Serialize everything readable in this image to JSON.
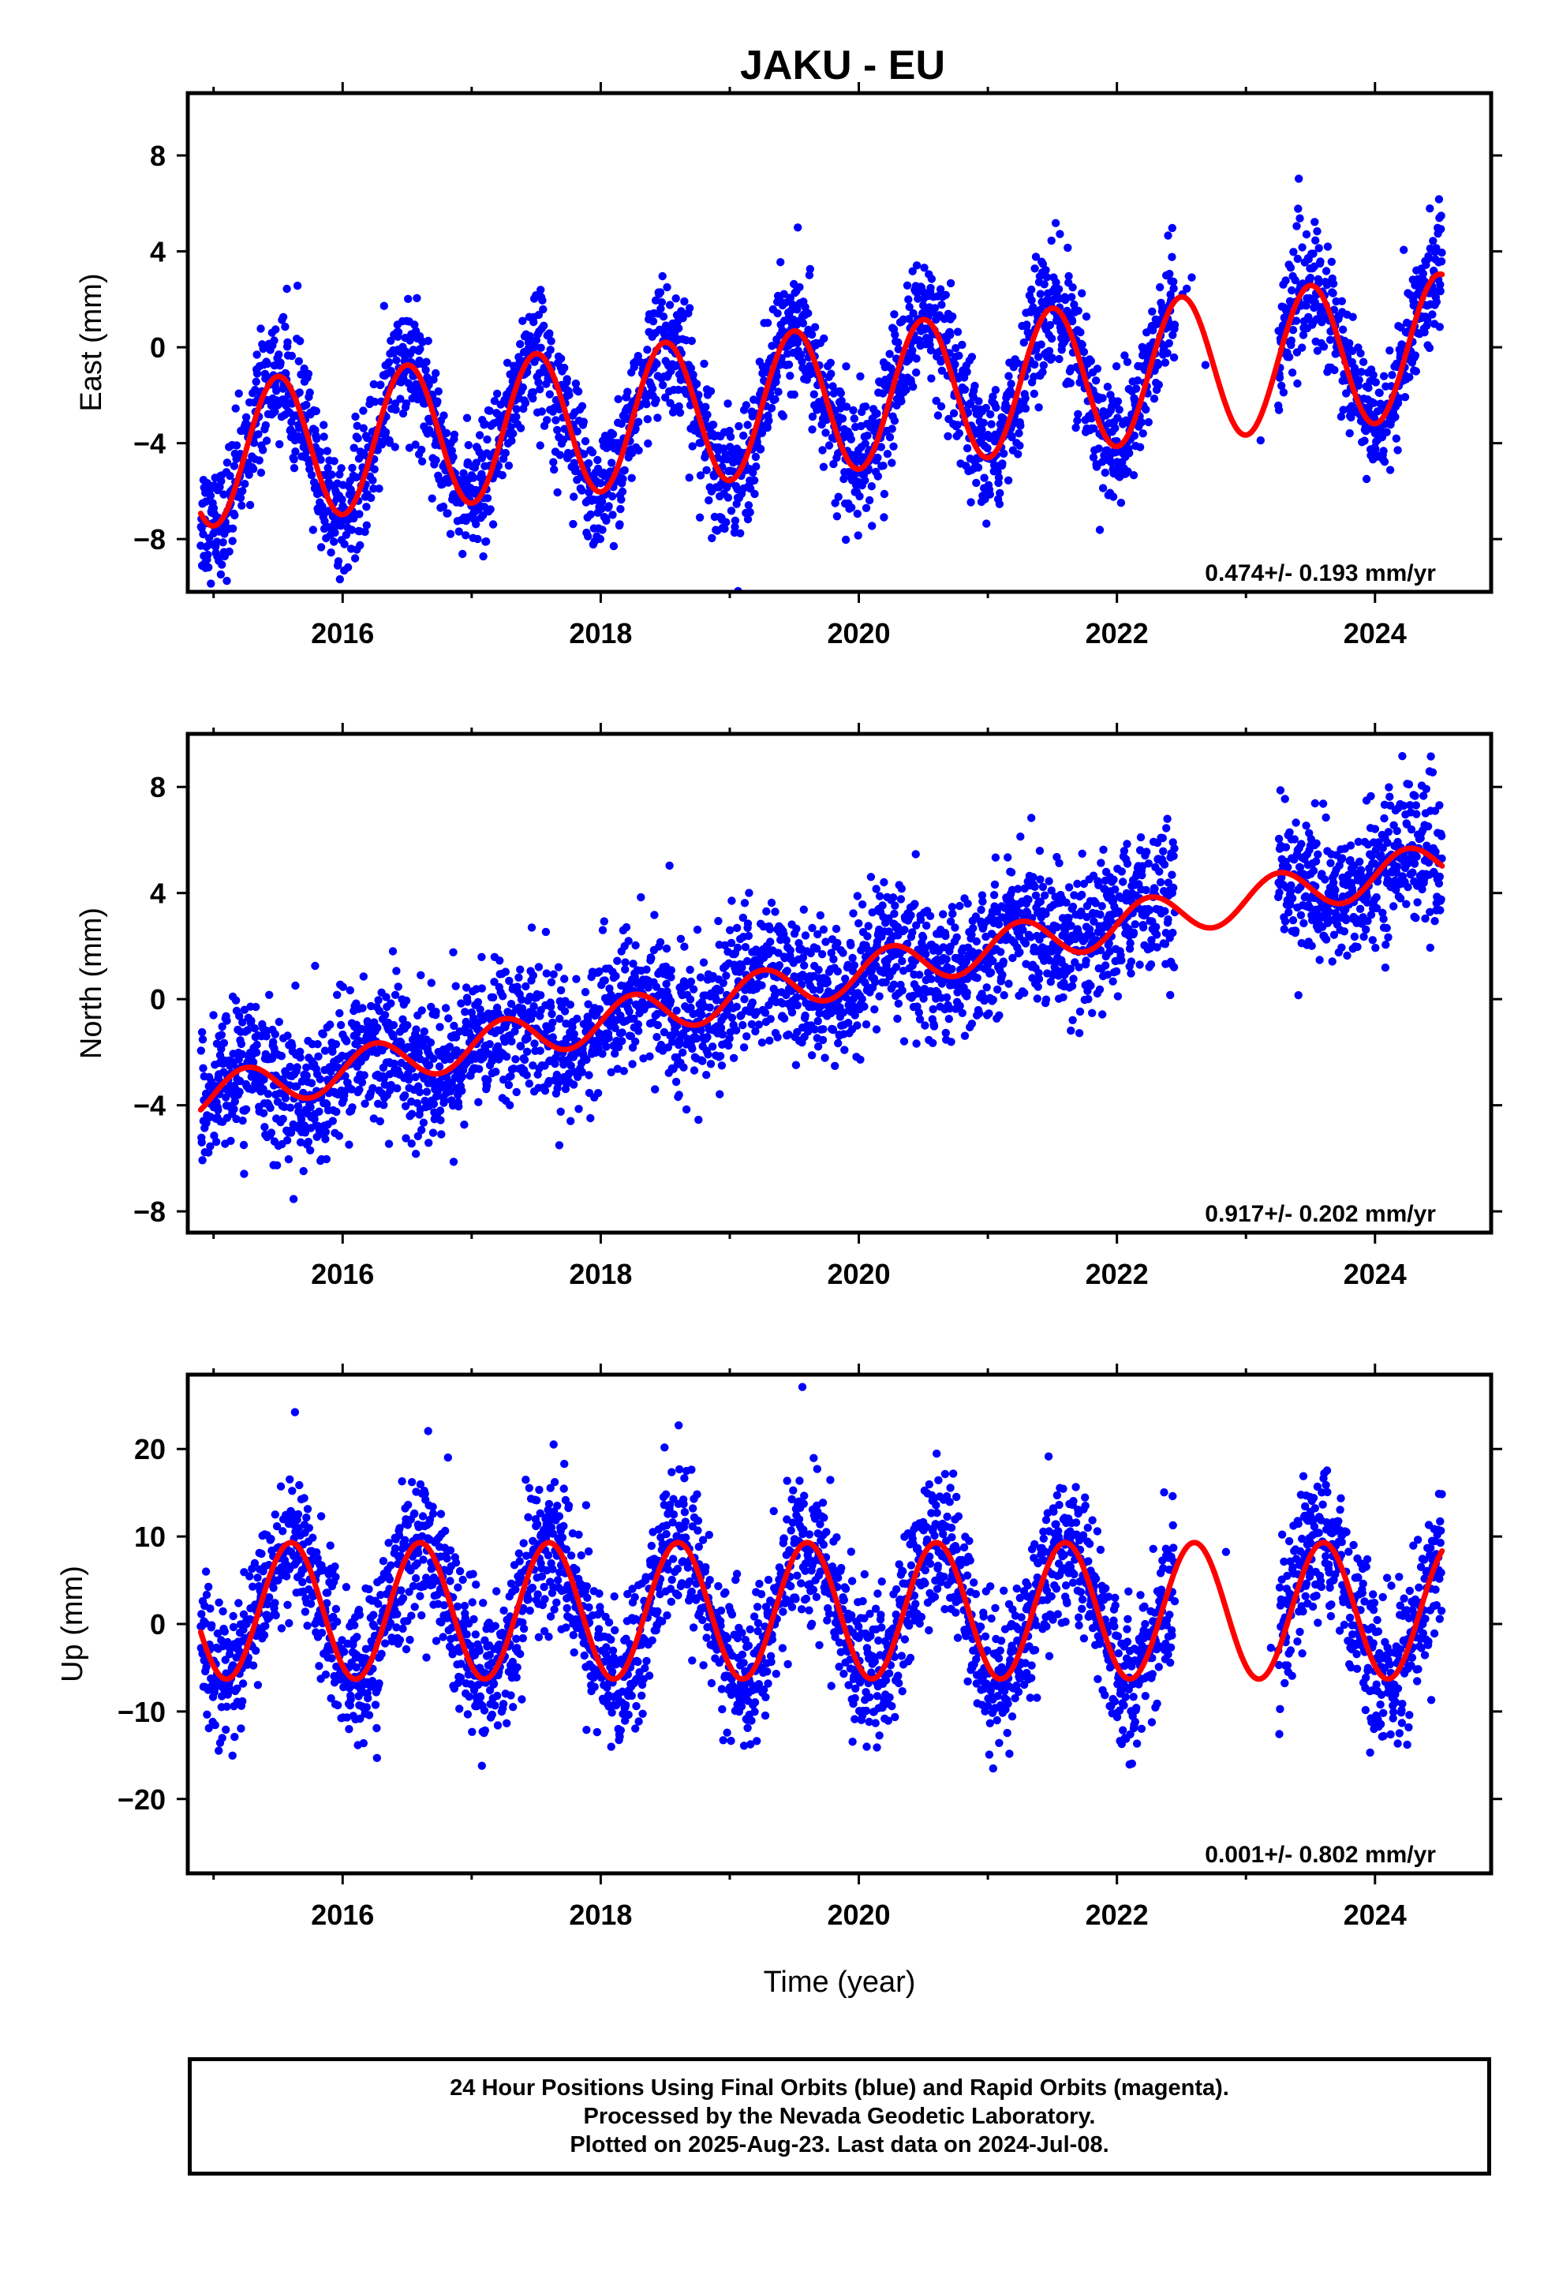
{
  "title": "JAKU - EU",
  "colors": {
    "data": "#0000ff",
    "model": "#ff0000",
    "axis": "#000000"
  },
  "footer": {
    "line1": "24 Hour Positions Using Final Orbits (blue) and Rapid Orbits (magenta).",
    "line2": "Processed by the Nevada Geodetic Laboratory.",
    "line3": "Plotted on 2025-Aug-23. Last data on 2024-Jul-08."
  },
  "chart_data": [
    {
      "type": "scatter",
      "component": "east",
      "title": "JAKU - EU",
      "xlabel": "",
      "ylabel": "East (mm)",
      "xlim": [
        2014.8,
        2024.9
      ],
      "ylim": [
        -10.2,
        10.6
      ],
      "xticks": [
        2016,
        2018,
        2020,
        2022,
        2024
      ],
      "yticks": [
        -8,
        -4,
        0,
        4,
        8
      ],
      "rate_label": "0.474+/- 0.193 mm/yr",
      "data_span": [
        2014.9,
        2024.52
      ],
      "gap": [
        2022.45,
        2023.25
      ],
      "series": [
        {
          "kind": "daily positions (final orbits)",
          "color": "#0000ff",
          "model_for_generation": {
            "offset": -4.5,
            "rate": 0.474,
            "amp": 3.0,
            "phase": 0.25,
            "noise": 1.3
          }
        },
        {
          "kind": "model fit",
          "color": "#ff0000",
          "x_range": [
            2014.9,
            2024.52
          ],
          "model": {
            "offset": -4.5,
            "rate": 0.474,
            "amp": 3.0,
            "phase": 0.25
          }
        }
      ]
    },
    {
      "type": "scatter",
      "component": "north",
      "xlabel": "",
      "ylabel": "North (mm)",
      "xlim": [
        2014.8,
        2024.9
      ],
      "ylim": [
        -8.8,
        10.0
      ],
      "xticks": [
        2016,
        2018,
        2020,
        2022,
        2024
      ],
      "yticks": [
        -8,
        -4,
        0,
        4,
        8
      ],
      "rate_label": "0.917+/- 0.202 mm/yr",
      "data_span": [
        2014.9,
        2024.52
      ],
      "gap": [
        2022.45,
        2023.25
      ],
      "series": [
        {
          "kind": "daily positions (final orbits)",
          "color": "#0000ff",
          "model_for_generation": {
            "offset": -3.7,
            "rate": 0.917,
            "amp": 0.8,
            "phase": 0.0,
            "noise": 1.3
          }
        },
        {
          "kind": "model fit",
          "color": "#ff0000",
          "x_range": [
            2014.9,
            2024.52
          ],
          "model": {
            "offset": -3.7,
            "rate": 0.917,
            "amp": 0.8,
            "phase": 0.0
          }
        }
      ]
    },
    {
      "type": "scatter",
      "component": "up",
      "xlabel": "Time (year)",
      "ylabel": "Up (mm)",
      "xlim": [
        2014.8,
        2024.9
      ],
      "ylim": [
        -28.5,
        28.5
      ],
      "xticks": [
        2016,
        2018,
        2020,
        2022,
        2024
      ],
      "yticks": [
        -20,
        -10,
        0,
        10,
        20
      ],
      "rate_label": "0.001+/- 0.802 mm/yr",
      "data_span": [
        2014.9,
        2024.52
      ],
      "gap": [
        2022.45,
        2023.25
      ],
      "series": [
        {
          "kind": "daily positions (final orbits)",
          "color": "#0000ff",
          "model_for_generation": {
            "offset": 1.5,
            "rate": 0.001,
            "amp": 7.8,
            "phase": 0.35,
            "noise": 4.2
          }
        },
        {
          "kind": "model fit",
          "color": "#ff0000",
          "x_range": [
            2014.9,
            2024.52
          ],
          "model": {
            "offset": 1.5,
            "rate": 0.001,
            "amp": 7.8,
            "phase": 0.35
          }
        }
      ]
    }
  ]
}
